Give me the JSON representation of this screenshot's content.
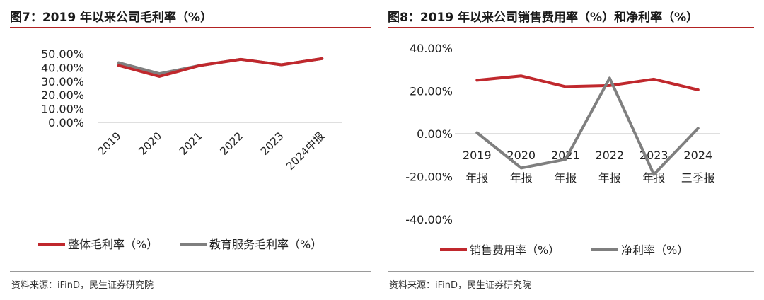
{
  "charts": [
    {
      "title": "图7：2019 年以来公司毛利率（%）",
      "source": "资料来源：iFinD，民生证券研究院"
    },
    {
      "title": "图8：2019 年以来公司销售费用率（%）和净利率（%）",
      "source": "资料来源：iFinD，民生证券研究院"
    }
  ],
  "chart_data": [
    {
      "type": "line",
      "categories": [
        "2019",
        "2020",
        "2021",
        "2022",
        "2023",
        "2024中报"
      ],
      "y_tick_labels": [
        "50.00%",
        "40.00%",
        "30.00%",
        "20.00%",
        "10.00%",
        "0.00%"
      ],
      "ylim": [
        0,
        50
      ],
      "grid": false,
      "legend_position": "bottom",
      "series": [
        {
          "name": "整体毛利率（%）",
          "color": "#c0282d",
          "values": [
            41.5,
            33.5,
            41.5,
            46.0,
            42.0,
            46.5
          ]
        },
        {
          "name": "教育服务毛利率（%）",
          "color": "#7f7f7f",
          "values": [
            43.5,
            35.5,
            41.5,
            46.0,
            42.0,
            46.5
          ]
        }
      ]
    },
    {
      "type": "line",
      "categories": [
        [
          "2019",
          "年报"
        ],
        [
          "2020",
          "年报"
        ],
        [
          "2021",
          "年报"
        ],
        [
          "2022",
          "年报"
        ],
        [
          "2023",
          "年报"
        ],
        [
          "2024",
          "三季报"
        ]
      ],
      "y_tick_labels": [
        "40.00%",
        "20.00%",
        "0.00%",
        "-20.00%",
        "-40.00%"
      ],
      "ylim": [
        -40,
        40
      ],
      "grid": false,
      "legend_position": "bottom",
      "series": [
        {
          "name": "销售费用率（%）",
          "color": "#c0282d",
          "values": [
            25.0,
            27.0,
            22.0,
            22.5,
            25.5,
            20.5
          ]
        },
        {
          "name": "净利率（%）",
          "color": "#7f7f7f",
          "values": [
            0.5,
            -16.0,
            -12.0,
            26.0,
            -19.0,
            2.5
          ]
        }
      ]
    }
  ]
}
